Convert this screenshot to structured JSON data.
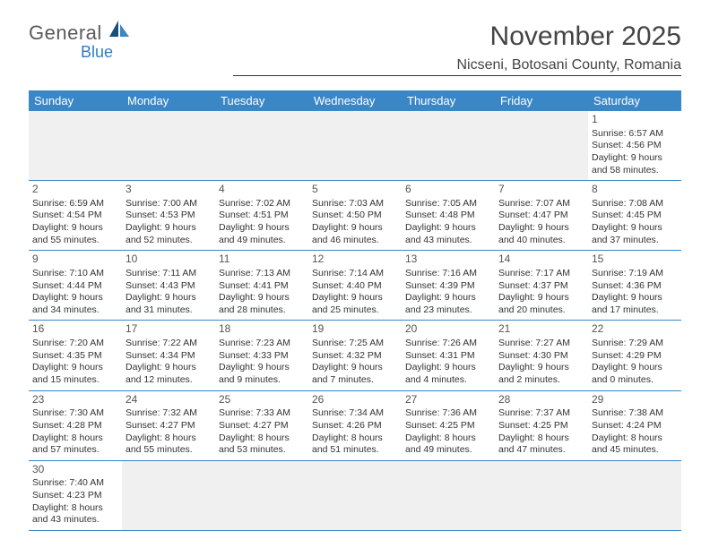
{
  "logo": {
    "text_main": "General",
    "text_sub": "Blue",
    "icon_color_dark": "#1a4e7a",
    "icon_color_light": "#3a87c8"
  },
  "header": {
    "month": "November 2025",
    "location": "Nicseni, Botosani County, Romania"
  },
  "colors": {
    "header_bar": "#3a87c8",
    "row_divider": "#3a87c8",
    "empty_cell": "#f0f0f0",
    "text": "#333333"
  },
  "weekdays": [
    "Sunday",
    "Monday",
    "Tuesday",
    "Wednesday",
    "Thursday",
    "Friday",
    "Saturday"
  ],
  "weeks": [
    [
      {
        "empty": true
      },
      {
        "empty": true
      },
      {
        "empty": true
      },
      {
        "empty": true
      },
      {
        "empty": true
      },
      {
        "empty": true
      },
      {
        "num": "1",
        "sunrise": "6:57 AM",
        "sunset": "4:56 PM",
        "daylight": "9 hours and 58 minutes."
      }
    ],
    [
      {
        "num": "2",
        "sunrise": "6:59 AM",
        "sunset": "4:54 PM",
        "daylight": "9 hours and 55 minutes."
      },
      {
        "num": "3",
        "sunrise": "7:00 AM",
        "sunset": "4:53 PM",
        "daylight": "9 hours and 52 minutes."
      },
      {
        "num": "4",
        "sunrise": "7:02 AM",
        "sunset": "4:51 PM",
        "daylight": "9 hours and 49 minutes."
      },
      {
        "num": "5",
        "sunrise": "7:03 AM",
        "sunset": "4:50 PM",
        "daylight": "9 hours and 46 minutes."
      },
      {
        "num": "6",
        "sunrise": "7:05 AM",
        "sunset": "4:48 PM",
        "daylight": "9 hours and 43 minutes."
      },
      {
        "num": "7",
        "sunrise": "7:07 AM",
        "sunset": "4:47 PM",
        "daylight": "9 hours and 40 minutes."
      },
      {
        "num": "8",
        "sunrise": "7:08 AM",
        "sunset": "4:45 PM",
        "daylight": "9 hours and 37 minutes."
      }
    ],
    [
      {
        "num": "9",
        "sunrise": "7:10 AM",
        "sunset": "4:44 PM",
        "daylight": "9 hours and 34 minutes."
      },
      {
        "num": "10",
        "sunrise": "7:11 AM",
        "sunset": "4:43 PM",
        "daylight": "9 hours and 31 minutes."
      },
      {
        "num": "11",
        "sunrise": "7:13 AM",
        "sunset": "4:41 PM",
        "daylight": "9 hours and 28 minutes."
      },
      {
        "num": "12",
        "sunrise": "7:14 AM",
        "sunset": "4:40 PM",
        "daylight": "9 hours and 25 minutes."
      },
      {
        "num": "13",
        "sunrise": "7:16 AM",
        "sunset": "4:39 PM",
        "daylight": "9 hours and 23 minutes."
      },
      {
        "num": "14",
        "sunrise": "7:17 AM",
        "sunset": "4:37 PM",
        "daylight": "9 hours and 20 minutes."
      },
      {
        "num": "15",
        "sunrise": "7:19 AM",
        "sunset": "4:36 PM",
        "daylight": "9 hours and 17 minutes."
      }
    ],
    [
      {
        "num": "16",
        "sunrise": "7:20 AM",
        "sunset": "4:35 PM",
        "daylight": "9 hours and 15 minutes."
      },
      {
        "num": "17",
        "sunrise": "7:22 AM",
        "sunset": "4:34 PM",
        "daylight": "9 hours and 12 minutes."
      },
      {
        "num": "18",
        "sunrise": "7:23 AM",
        "sunset": "4:33 PM",
        "daylight": "9 hours and 9 minutes."
      },
      {
        "num": "19",
        "sunrise": "7:25 AM",
        "sunset": "4:32 PM",
        "daylight": "9 hours and 7 minutes."
      },
      {
        "num": "20",
        "sunrise": "7:26 AM",
        "sunset": "4:31 PM",
        "daylight": "9 hours and 4 minutes."
      },
      {
        "num": "21",
        "sunrise": "7:27 AM",
        "sunset": "4:30 PM",
        "daylight": "9 hours and 2 minutes."
      },
      {
        "num": "22",
        "sunrise": "7:29 AM",
        "sunset": "4:29 PM",
        "daylight": "9 hours and 0 minutes."
      }
    ],
    [
      {
        "num": "23",
        "sunrise": "7:30 AM",
        "sunset": "4:28 PM",
        "daylight": "8 hours and 57 minutes."
      },
      {
        "num": "24",
        "sunrise": "7:32 AM",
        "sunset": "4:27 PM",
        "daylight": "8 hours and 55 minutes."
      },
      {
        "num": "25",
        "sunrise": "7:33 AM",
        "sunset": "4:27 PM",
        "daylight": "8 hours and 53 minutes."
      },
      {
        "num": "26",
        "sunrise": "7:34 AM",
        "sunset": "4:26 PM",
        "daylight": "8 hours and 51 minutes."
      },
      {
        "num": "27",
        "sunrise": "7:36 AM",
        "sunset": "4:25 PM",
        "daylight": "8 hours and 49 minutes."
      },
      {
        "num": "28",
        "sunrise": "7:37 AM",
        "sunset": "4:25 PM",
        "daylight": "8 hours and 47 minutes."
      },
      {
        "num": "29",
        "sunrise": "7:38 AM",
        "sunset": "4:24 PM",
        "daylight": "8 hours and 45 minutes."
      }
    ],
    [
      {
        "num": "30",
        "sunrise": "7:40 AM",
        "sunset": "4:23 PM",
        "daylight": "8 hours and 43 minutes."
      },
      {
        "empty": true
      },
      {
        "empty": true
      },
      {
        "empty": true
      },
      {
        "empty": true
      },
      {
        "empty": true
      },
      {
        "empty": true
      }
    ]
  ]
}
